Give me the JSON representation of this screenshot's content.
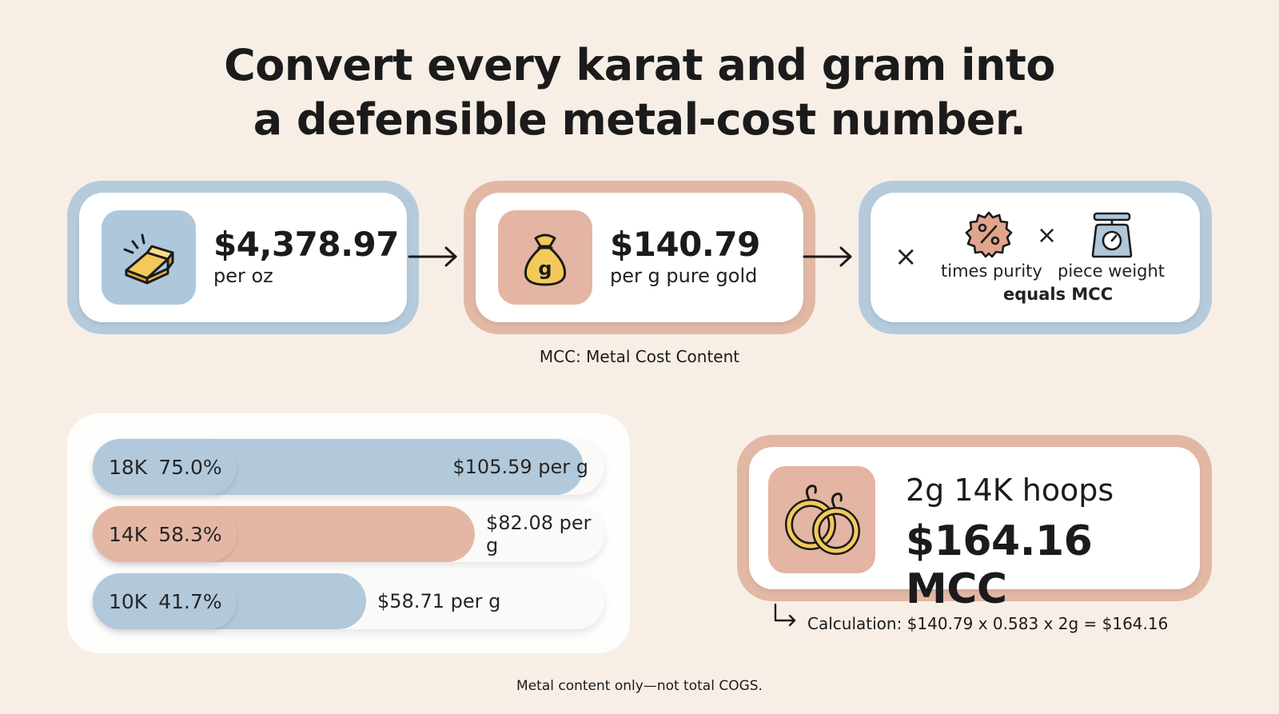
{
  "title": {
    "line1": "Convert every karat and gram into",
    "line2": "a defensible metal-cost number."
  },
  "flow": {
    "ounce": {
      "icon": "gold-bar-icon",
      "value": "$4,378.97",
      "unit": "per oz"
    },
    "gram": {
      "icon": "money-bag-g-icon",
      "value": "$140.79",
      "unit": "per g pure gold"
    },
    "formula": {
      "times_symbol": "×",
      "purity_icon": "percent-badge-icon",
      "purity_label": "times purity",
      "times_symbol_2": "×",
      "weight_icon": "scale-icon",
      "weight_label": "piece weight",
      "result_label": "equals MCC"
    }
  },
  "mcc_note": "MCC: Metal Cost Content",
  "karats": [
    {
      "karat": "18K",
      "purity": "75.0%",
      "price": "$105.59 per g",
      "fill": 0.75,
      "color": "#aec7db"
    },
    {
      "karat": "14K",
      "purity": "58.3%",
      "price": "$82.08 per g",
      "fill": 0.583,
      "color": "#e3b5a2"
    },
    {
      "karat": "10K",
      "purity": "41.7%",
      "price": "$58.71 per g",
      "fill": 0.417,
      "color": "#aec7db"
    }
  ],
  "example": {
    "icon": "hoop-earrings-icon",
    "title": "2g 14K hoops",
    "value": "$164.16 MCC",
    "calculation": "Calculation: $140.79 x 0.583 x 2g = $164.16"
  },
  "footer": "Metal content only—not total COGS.",
  "colors": {
    "blue": "#b5cbdc",
    "pink": "#e2b8a5",
    "background": "#f7efe6"
  }
}
